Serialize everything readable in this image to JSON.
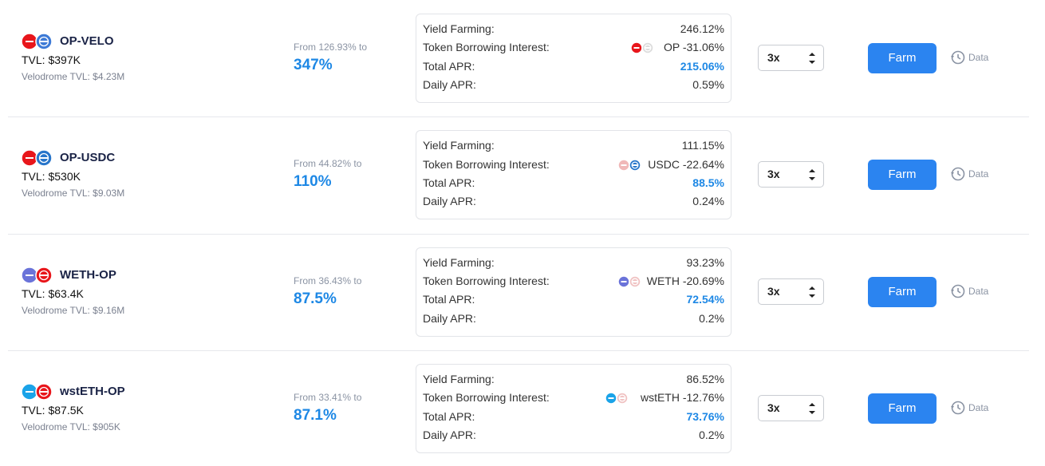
{
  "labels": {
    "yield_farming": "Yield Farming:",
    "borrow": "Token Borrowing Interest:",
    "total": "Total APR:",
    "daily": "Daily APR:"
  },
  "rows": [
    {
      "pair": "OP-VELO",
      "tvl": "TVL: $397K",
      "velodrome_tvl": "Velodrome TVL: $4.23M",
      "range_from": "From 126.93% to",
      "range_to": "347%",
      "yield_farming": "246.12%",
      "borrow": "OP -31.06%",
      "total": "215.06%",
      "daily": "0.59%",
      "leverage": "3x",
      "farm": "Farm",
      "data": "Data"
    },
    {
      "pair": "OP-USDC",
      "tvl": "TVL: $530K",
      "velodrome_tvl": "Velodrome TVL: $9.03M",
      "range_from": "From 44.82% to",
      "range_to": "110%",
      "yield_farming": "111.15%",
      "borrow": "USDC -22.64%",
      "total": "88.5%",
      "daily": "0.24%",
      "leverage": "3x",
      "farm": "Farm",
      "data": "Data"
    },
    {
      "pair": "WETH-OP",
      "tvl": "TVL: $63.4K",
      "velodrome_tvl": "Velodrome TVL: $9.16M",
      "range_from": "From 36.43% to",
      "range_to": "87.5%",
      "yield_farming": "93.23%",
      "borrow": "WETH -20.69%",
      "total": "72.54%",
      "daily": "0.2%",
      "leverage": "3x",
      "farm": "Farm",
      "data": "Data"
    },
    {
      "pair": "wstETH-OP",
      "tvl": "TVL: $87.5K",
      "velodrome_tvl": "Velodrome TVL: $905K",
      "range_from": "From 33.41% to",
      "range_to": "87.1%",
      "yield_farming": "86.52%",
      "borrow": "wstETH -12.76%",
      "total": "73.76%",
      "daily": "0.2%",
      "leverage": "3x",
      "farm": "Farm",
      "data": "Data"
    }
  ]
}
